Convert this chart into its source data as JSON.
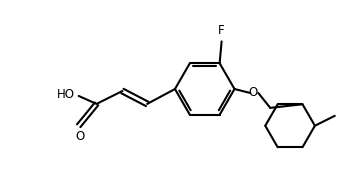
{
  "bg_color": "#ffffff",
  "line_color": "#000000",
  "line_width": 1.5,
  "font_size": 8.5,
  "fig_width": 3.41,
  "fig_height": 1.84,
  "dpi": 100,
  "xlim": [
    0.0,
    3.41
  ],
  "ylim": [
    0.0,
    1.84
  ]
}
